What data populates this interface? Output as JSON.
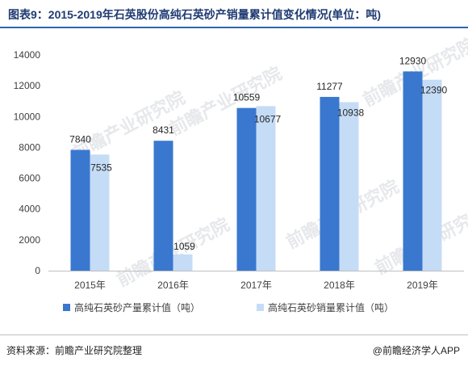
{
  "header": {
    "title": "图表9：2015-2019年石英股份高纯石英砂产销量累计值变化情况(单位：吨)"
  },
  "footer": {
    "source": "资料来源：前瞻产业研究院整理",
    "app": "@前瞻经济学人APP"
  },
  "watermark": {
    "text": "前瞻产业研究院"
  },
  "colors": {
    "production": "#3a78cf",
    "sales": "#c5dcf6"
  },
  "chart_data": {
    "type": "bar",
    "title": "图表9：2015-2019年石英股份高纯石英砂产销量累计值变化情况(单位：吨)",
    "categories": [
      "2015年",
      "2016年",
      "2017年",
      "2018年",
      "2019年"
    ],
    "series": [
      {
        "name": "高纯石英砂产量累计值（吨）",
        "values": [
          7840,
          8431,
          10559,
          11277,
          12930
        ]
      },
      {
        "name": "高纯石英砂销量累计值（吨）",
        "values": [
          7535,
          1059,
          10677,
          10938,
          12390
        ]
      }
    ],
    "yticks": [
      "0",
      "2000",
      "4000",
      "6000",
      "8000",
      "10000",
      "12000",
      "14000"
    ],
    "ylim": [
      0,
      14000
    ],
    "xlabel": "",
    "ylabel": "",
    "grid": false,
    "legend": "bottom"
  }
}
